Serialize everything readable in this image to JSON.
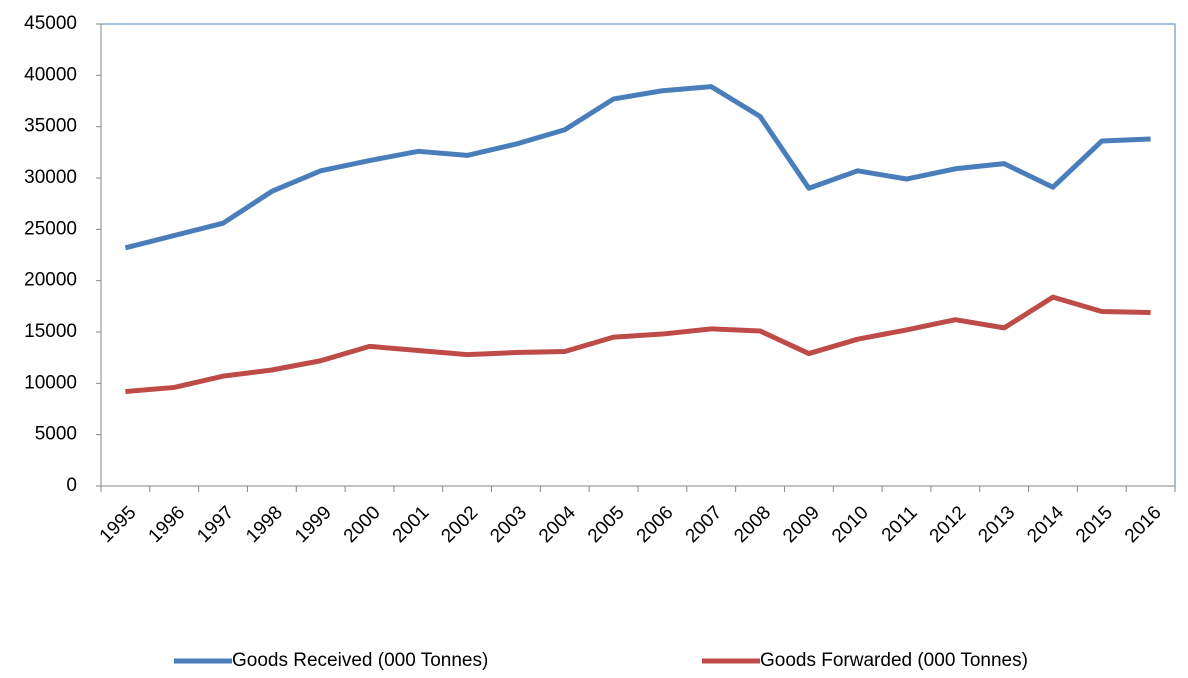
{
  "chart_data": {
    "type": "line",
    "categories": [
      "1995",
      "1996",
      "1997",
      "1998",
      "1999",
      "2000",
      "2001",
      "2002",
      "2003",
      "2004",
      "2005",
      "2006",
      "2007",
      "2008",
      "2009",
      "2010",
      "2011",
      "2012",
      "2013",
      "2014",
      "2015",
      "2016"
    ],
    "series": [
      {
        "name": "Goods Received (000 Tonnes)",
        "color": "#4a7ebb",
        "values": [
          23200,
          24400,
          25600,
          28700,
          30700,
          31700,
          32600,
          32200,
          33300,
          34700,
          37700,
          38500,
          38900,
          36000,
          29000,
          30700,
          29900,
          30900,
          31400,
          29100,
          33600,
          33800
        ]
      },
      {
        "name": "Goods Forwarded (000 Tonnes)",
        "color": "#be4b48",
        "values": [
          9200,
          9600,
          10700,
          11300,
          12200,
          13600,
          13200,
          12800,
          13000,
          13100,
          14500,
          14800,
          15300,
          15100,
          12900,
          14300,
          15200,
          16200,
          15400,
          18400,
          17000,
          16900
        ]
      }
    ],
    "ylim": [
      0,
      45000
    ],
    "yticks": [
      0,
      5000,
      10000,
      15000,
      20000,
      25000,
      30000,
      35000,
      40000,
      45000
    ],
    "grid": false,
    "legend": "bottom"
  }
}
